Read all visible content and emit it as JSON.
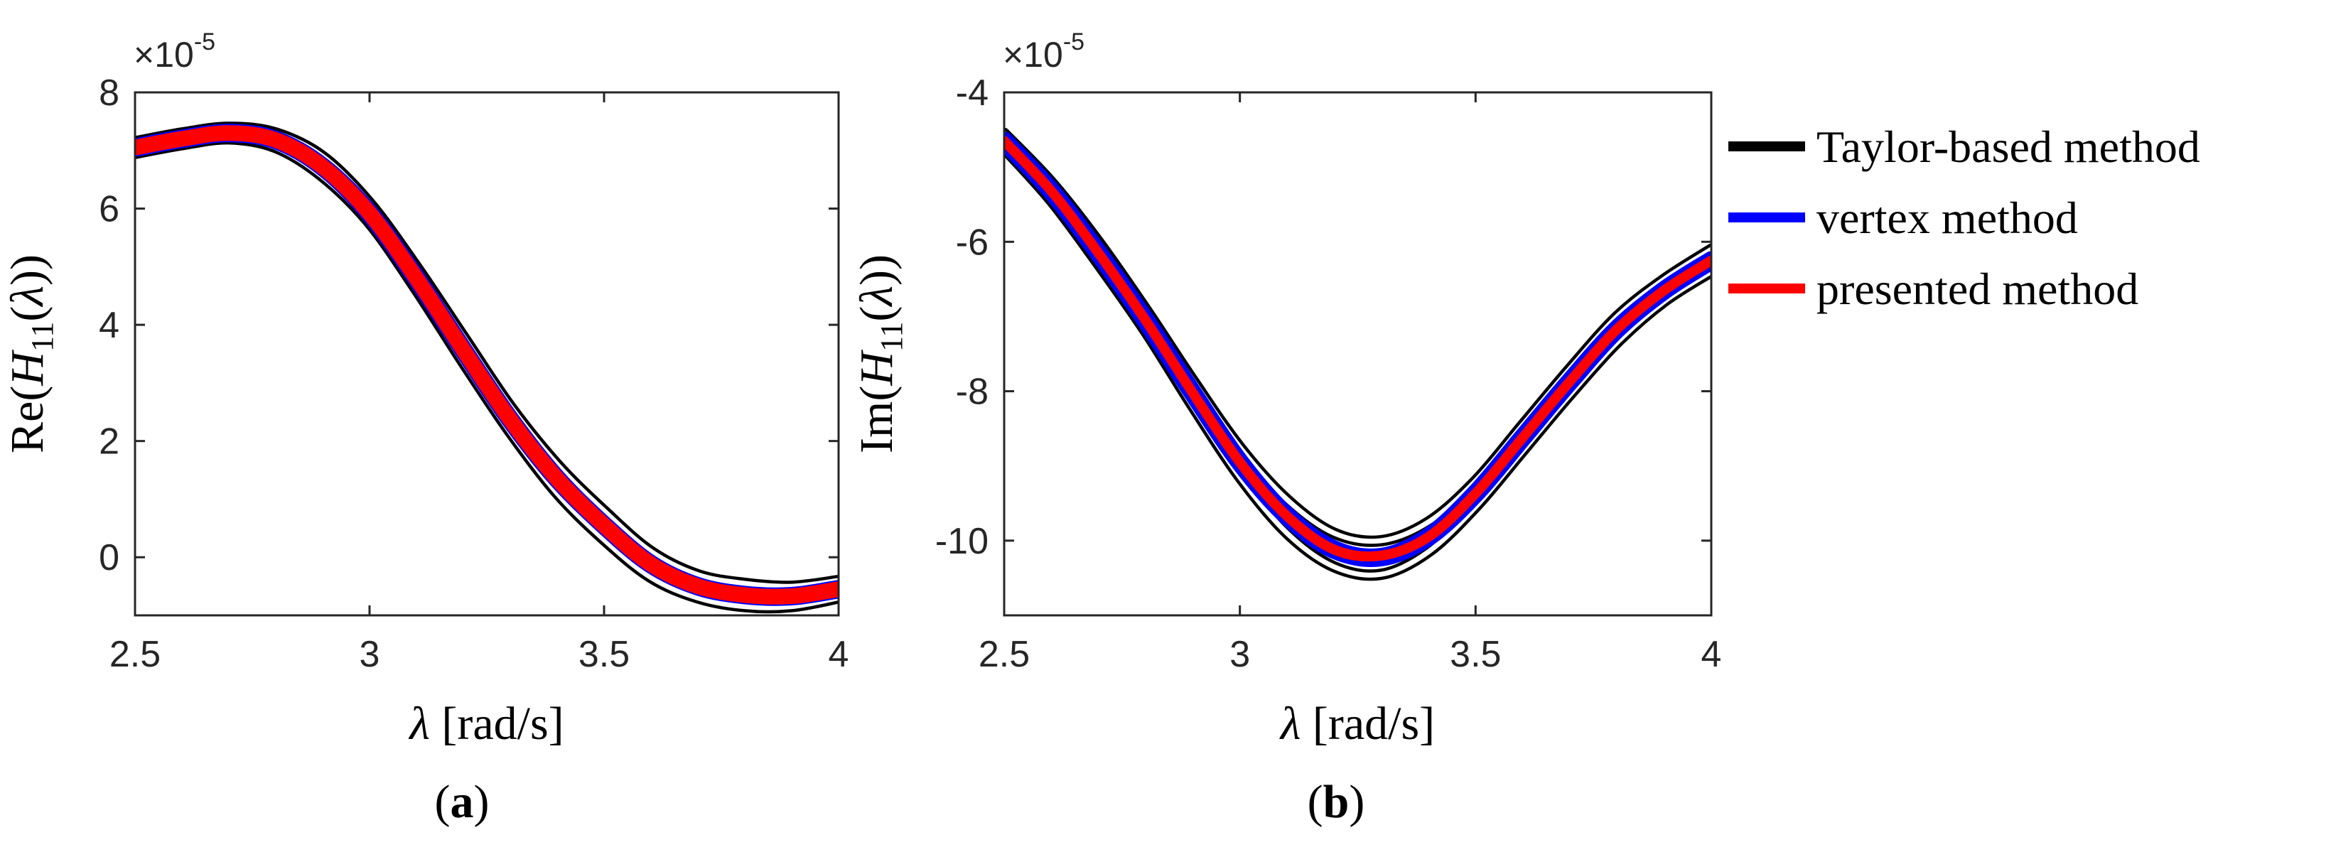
{
  "chart_data": [
    {
      "type": "line",
      "panel_label": "a",
      "ylabel_prefix": "Re(",
      "ylabel_var": "H",
      "ylabel_sub": "11",
      "ylabel_arg": "(",
      "ylabel_lambda": "λ",
      "ylabel_suffix": "))",
      "xlabel_lambda": "λ",
      "xlabel_unit": " [rad/s]",
      "multiplier_text": "×10",
      "multiplier_exp": "-5",
      "xlim": [
        2.5,
        4
      ],
      "ylim": [
        -1,
        8
      ],
      "xticks": [
        2.5,
        3,
        3.5,
        4
      ],
      "xtick_labels": [
        "2.5",
        "3",
        "3.5",
        "4"
      ],
      "yticks": [
        0,
        2,
        4,
        6,
        8
      ],
      "ytick_labels": [
        "0",
        "2",
        "4",
        "6",
        "8"
      ],
      "x": [
        2.5,
        2.6,
        2.7,
        2.8,
        2.9,
        3.0,
        3.1,
        3.2,
        3.3,
        3.4,
        3.5,
        3.6,
        3.7,
        3.8,
        3.9,
        4.0
      ],
      "series": [
        {
          "name": "Taylor-based method (upper bound)",
          "values": [
            7.15,
            7.3,
            7.4,
            7.3,
            6.9,
            6.1,
            5.0,
            3.8,
            2.6,
            1.6,
            0.8,
            0.1,
            -0.3,
            -0.45,
            -0.5,
            -0.4
          ]
        },
        {
          "name": "Taylor-based method (lower bound)",
          "values": [
            6.95,
            7.1,
            7.2,
            7.05,
            6.55,
            5.75,
            4.6,
            3.35,
            2.15,
            1.1,
            0.3,
            -0.35,
            -0.7,
            -0.85,
            -0.85,
            -0.7
          ]
        },
        {
          "name": "vertex method",
          "values": [
            7.05,
            7.2,
            7.3,
            7.18,
            6.72,
            5.92,
            4.8,
            3.57,
            2.37,
            1.35,
            0.55,
            -0.12,
            -0.5,
            -0.65,
            -0.67,
            -0.55
          ]
        },
        {
          "name": "presented method",
          "values": [
            7.05,
            7.2,
            7.3,
            7.18,
            6.72,
            5.92,
            4.8,
            3.57,
            2.37,
            1.35,
            0.55,
            -0.12,
            -0.5,
            -0.65,
            -0.67,
            -0.55
          ]
        }
      ]
    },
    {
      "type": "line",
      "panel_label": "b",
      "ylabel_prefix": "Im(",
      "ylabel_var": "H",
      "ylabel_sub": "11",
      "ylabel_arg": "(",
      "ylabel_lambda": "λ",
      "ylabel_suffix": "))",
      "xlabel_lambda": "λ",
      "xlabel_unit": " [rad/s]",
      "multiplier_text": "×10",
      "multiplier_exp": "-5",
      "xlim": [
        2.5,
        4
      ],
      "ylim": [
        -11,
        -4
      ],
      "xticks": [
        2.5,
        3,
        3.5,
        4
      ],
      "xtick_labels": [
        "2.5",
        "3",
        "3.5",
        "4"
      ],
      "yticks": [
        -10,
        -8,
        -6,
        -4
      ],
      "ytick_labels": [
        "-10",
        "-8",
        "-6",
        "-4"
      ],
      "x": [
        2.5,
        2.6,
        2.7,
        2.8,
        2.9,
        3.0,
        3.1,
        3.2,
        3.3,
        3.4,
        3.5,
        3.6,
        3.7,
        3.8,
        3.9,
        4.0
      ],
      "series": [
        {
          "name": "Taylor-based method (upper bound)",
          "values": [
            -4.55,
            -5.2,
            -6.0,
            -6.9,
            -7.85,
            -8.75,
            -9.45,
            -9.9,
            -10.0,
            -9.75,
            -9.2,
            -8.45,
            -7.7,
            -7.0,
            -6.5,
            -6.1
          ]
        },
        {
          "name": "Taylor-based method (lower bound)",
          "values": [
            -4.75,
            -5.45,
            -6.3,
            -7.2,
            -8.2,
            -9.15,
            -9.9,
            -10.35,
            -10.45,
            -10.15,
            -9.55,
            -8.8,
            -8.05,
            -7.35,
            -6.8,
            -6.4
          ]
        },
        {
          "name": "vertex method",
          "values": [
            -4.65,
            -5.32,
            -6.15,
            -7.05,
            -8.02,
            -8.95,
            -9.67,
            -10.12,
            -10.22,
            -9.95,
            -9.37,
            -8.62,
            -7.87,
            -7.17,
            -6.65,
            -6.25
          ]
        },
        {
          "name": "presented method",
          "values": [
            -4.65,
            -5.32,
            -6.15,
            -7.05,
            -8.02,
            -8.95,
            -9.67,
            -10.12,
            -10.2,
            -9.95,
            -9.37,
            -8.62,
            -7.87,
            -7.17,
            -6.65,
            -6.25
          ]
        }
      ]
    }
  ],
  "legend": {
    "placement": "right",
    "items": [
      {
        "label": "Taylor-based method",
        "color": "#000000"
      },
      {
        "label": "vertex method",
        "color": "#0000ff"
      },
      {
        "label": "presented method",
        "color": "#ff0000"
      }
    ]
  },
  "colors": {
    "taylor": "#000000",
    "vertex": "#0000ff",
    "presented": "#ff0000",
    "axis": "#262626",
    "outline": "#000000"
  }
}
